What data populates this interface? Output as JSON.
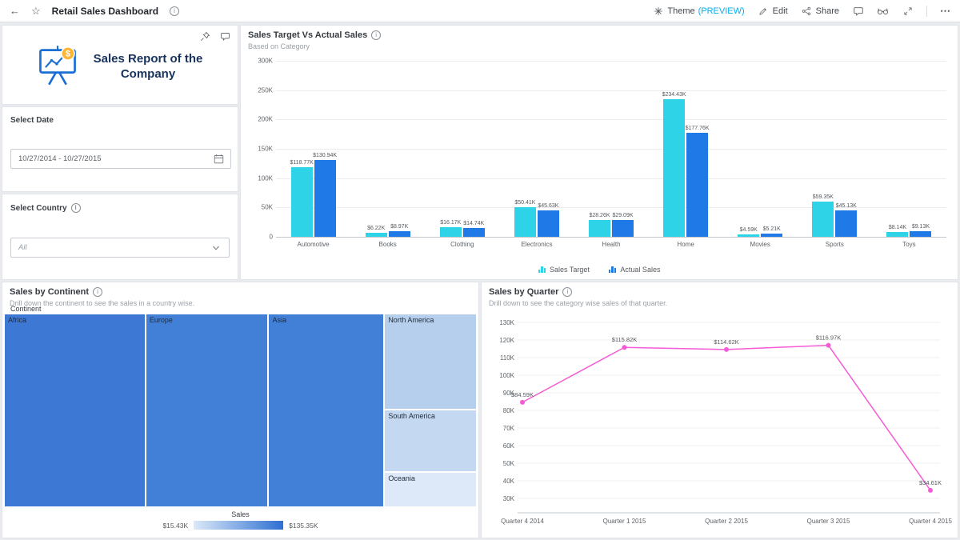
{
  "topbar": {
    "title": "Retail Sales Dashboard",
    "back_icon": "←",
    "star_icon": "☆",
    "theme_label": "Theme",
    "theme_preview": "(PREVIEW)",
    "edit_label": "Edit",
    "share_label": "Share",
    "more_icon": "⋯",
    "preview_color": "#00aeef"
  },
  "side_panel": {
    "report_title": "Sales Report of the Company",
    "select_date": {
      "label": "Select Date",
      "value": "10/27/2014 - 10/27/2015"
    },
    "select_country": {
      "label": "Select Country",
      "value": "All"
    }
  },
  "chart_data": [
    {
      "type": "bar",
      "title": "Sales Target Vs Actual Sales",
      "subtitle": "Based on Category",
      "categories": [
        "Automotive",
        "Books",
        "Clothing",
        "Electronics",
        "Health",
        "Home",
        "Movies",
        "Sports",
        "Toys"
      ],
      "series": [
        {
          "name": "Sales Target",
          "color": "#2fd3e8",
          "values": [
            118770,
            6220,
            16170,
            50410,
            28260,
            234430,
            4590,
            59350,
            8140
          ],
          "labels": [
            "$118.77K",
            "$6.22K",
            "$16.17K",
            "$50.41K",
            "$28.26K",
            "$234.43K",
            "$4.59K",
            "$59.35K",
            "$8.14K"
          ]
        },
        {
          "name": "Actual Sales",
          "color": "#1f7ae8",
          "values": [
            130940,
            8970,
            14740,
            45630,
            29090,
            177760,
            5210,
            45130,
            9130
          ],
          "labels": [
            "$130.94K",
            "$8.97K",
            "$14.74K",
            "$45.63K",
            "$29.09K",
            "$177.76K",
            "$5.21K",
            "$45.13K",
            "$9.13K"
          ]
        }
      ],
      "ylim": [
        0,
        300000
      ],
      "yticks": [
        "300K",
        "250K",
        "200K",
        "150K",
        "100K",
        "50K",
        "0"
      ],
      "legend_position": "bottom",
      "grid": true
    },
    {
      "type": "treemap",
      "title": "Sales by Continent",
      "subtitle": "Drill down the continent to see the sales in a country wise.",
      "group_label": "Continent",
      "legend": {
        "label": "Sales",
        "min": "$15.43K",
        "max": "$135.35K",
        "gradient": [
          "#dce9f8",
          "#2e6fd2"
        ]
      },
      "columns": [
        {
          "weight": 30,
          "tiles": [
            {
              "name": "Africa",
              "color": "#3d79d4",
              "weight": 100
            }
          ]
        },
        {
          "weight": 26,
          "tiles": [
            {
              "name": "Europe",
              "color": "#4280d8",
              "weight": 100
            }
          ]
        },
        {
          "weight": 24.5,
          "tiles": [
            {
              "name": "Asia",
              "color": "#4280d8",
              "weight": 100
            }
          ]
        },
        {
          "weight": 19.5,
          "tiles": [
            {
              "name": "North America",
              "color": "#b5cfec",
              "weight": 50
            },
            {
              "name": "South America",
              "color": "#c4d9f1",
              "weight": 32
            },
            {
              "name": "Oceania",
              "color": "#dde9f8",
              "weight": 18
            }
          ]
        }
      ]
    },
    {
      "type": "line",
      "title": "Sales by Quarter",
      "subtitle": "Drill down to see the category wise sales of that quarter.",
      "categories": [
        "Quarter 4 2014",
        "Quarter 1 2015",
        "Quarter 2 2015",
        "Quarter 3 2015",
        "Quarter 4 2015"
      ],
      "values": [
        84590,
        115820,
        114620,
        116970,
        34610
      ],
      "labels": [
        "$84.59K",
        "$115.82K",
        "$114.62K",
        "$116.97K",
        "$34.61K"
      ],
      "color": "#f45bd5",
      "ylim": [
        30000,
        130000
      ],
      "yticks": [
        "130K",
        "120K",
        "110K",
        "100K",
        "90K",
        "80K",
        "70K",
        "60K",
        "50K",
        "40K",
        "30K"
      ],
      "grid": true
    }
  ]
}
